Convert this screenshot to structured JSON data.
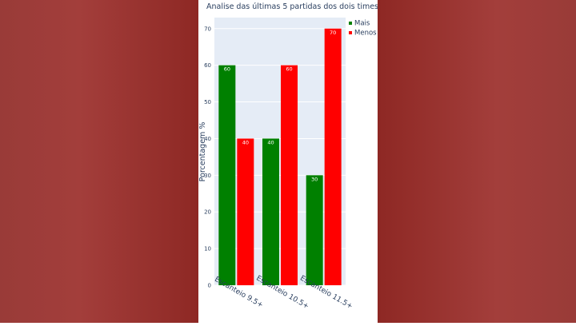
{
  "chart_data": {
    "type": "bar",
    "title": "Analise das últimas 5 partidas dos dois times",
    "ylabel": "Porcentagem %",
    "xlabel": "",
    "categories": [
      "Escanteio 9.5+",
      "Escanteio 10.5+",
      "Escanteio 11.5+"
    ],
    "series": [
      {
        "name": "Mais",
        "values": [
          60,
          40,
          30
        ],
        "color": "#008000"
      },
      {
        "name": "Menos",
        "values": [
          40,
          60,
          70
        ],
        "color": "#ff0000"
      }
    ],
    "ylim": [
      0,
      73
    ],
    "yticks": [
      0,
      10,
      20,
      30,
      40,
      50,
      60,
      70
    ],
    "grid": true,
    "plot_bg": "#e5ecf6",
    "legend_position": "top-right"
  }
}
